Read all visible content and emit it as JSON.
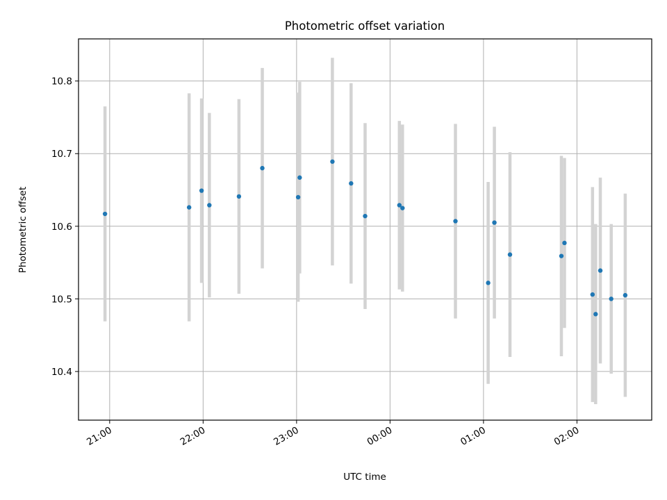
{
  "chart_data": {
    "type": "scatter",
    "title": "Photometric offset variation",
    "xlabel": "UTC time",
    "ylabel": "Photometric offset",
    "x_tick_labels": [
      "21:00",
      "22:00",
      "23:00",
      "00:00",
      "01:00",
      "02:00"
    ],
    "y_tick_labels": [
      "10.4",
      "10.5",
      "10.6",
      "10.7",
      "10.8"
    ],
    "y_ticks": [
      10.4,
      10.5,
      10.6,
      10.7,
      10.8
    ],
    "xlim": [
      "20:40",
      "26:48"
    ],
    "ylim": [
      10.333,
      10.858
    ],
    "grid": true,
    "point_color": "#1f77b4",
    "errorbar_color": "#d3d3d3",
    "series": [
      {
        "x": [
          "20:57",
          "21:51",
          "21:59",
          "22:04",
          "22:23",
          "22:38",
          "23:01",
          "23:02",
          "23:23",
          "23:35",
          "23:44",
          "00:06",
          "00:08",
          "00:42",
          "01:03",
          "01:07",
          "01:17",
          "01:50",
          "01:52",
          "02:10",
          "02:12",
          "02:15",
          "02:22",
          "02:31"
        ],
        "y": [
          10.617,
          10.626,
          10.649,
          10.629,
          10.641,
          10.68,
          10.64,
          10.667,
          10.689,
          10.659,
          10.614,
          10.629,
          10.625,
          10.607,
          10.522,
          10.605,
          10.561,
          10.559,
          10.577,
          10.506,
          10.479,
          10.539,
          10.5,
          10.505
        ],
        "yerr": [
          0.148,
          0.157,
          0.127,
          0.127,
          0.134,
          0.138,
          0.144,
          0.132,
          0.143,
          0.138,
          0.128,
          0.116,
          0.115,
          0.134,
          0.139,
          0.132,
          0.141,
          0.138,
          0.117,
          0.148,
          0.124,
          0.128,
          0.103,
          0.14
        ]
      }
    ]
  }
}
